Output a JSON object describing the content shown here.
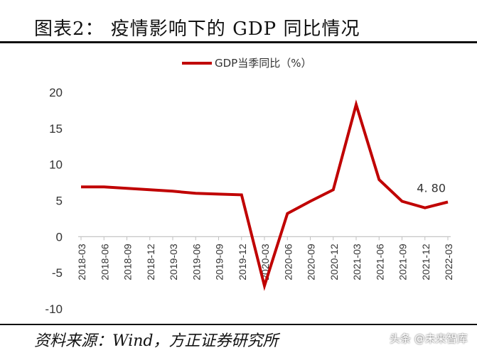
{
  "header": {
    "title": "图表2：  疫情影响下的 GDP 同比情况"
  },
  "footer": {
    "source": "资料来源：Wind，方正证券研究所"
  },
  "watermark": {
    "text": "头条 @未来智库"
  },
  "chart_data": {
    "type": "line",
    "title": "",
    "xlabel": "",
    "ylabel": "",
    "legend": "top-center",
    "grid": false,
    "ylim": [
      -10,
      20
    ],
    "yticks": [
      -10,
      -5,
      0,
      5,
      10,
      15,
      20
    ],
    "categories": [
      "2018-03",
      "2018-06",
      "2018-09",
      "2018-12",
      "2019-03",
      "2019-06",
      "2019-09",
      "2019-12",
      "2020-03",
      "2020-06",
      "2020-09",
      "2020-12",
      "2021-03",
      "2021-06",
      "2021-09",
      "2021-12",
      "2022-03"
    ],
    "series": [
      {
        "name": "GDP当季同比（%）",
        "color": "#c00000",
        "values": [
          6.9,
          6.9,
          6.7,
          6.5,
          6.3,
          6.0,
          5.9,
          5.8,
          -6.8,
          3.2,
          4.9,
          6.5,
          18.3,
          7.9,
          4.9,
          4.0,
          4.8
        ]
      }
    ],
    "annotations": [
      {
        "category": "2022-03",
        "text": "4. 80"
      }
    ]
  }
}
